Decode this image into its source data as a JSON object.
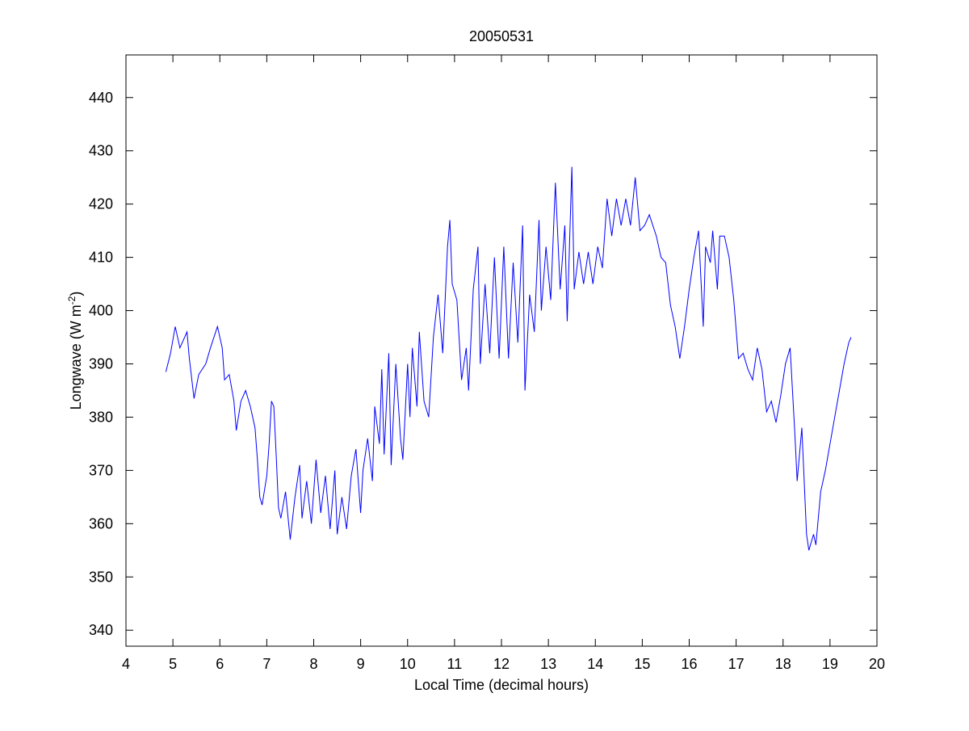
{
  "chart_data": {
    "type": "line",
    "title": "20050531",
    "xlabel": "Local Time (decimal hours)",
    "ylabel_parts": [
      "Longwave (W m",
      "-2",
      ")"
    ],
    "xlim": [
      4,
      20
    ],
    "ylim": [
      337,
      448
    ],
    "xticks": [
      4,
      5,
      6,
      7,
      8,
      9,
      10,
      11,
      12,
      13,
      14,
      15,
      16,
      17,
      18,
      19,
      20
    ],
    "yticks": [
      340,
      350,
      360,
      370,
      380,
      390,
      400,
      410,
      420,
      430,
      440
    ],
    "grid": false,
    "line_color": "#0000ff",
    "series": [
      {
        "name": "Longwave",
        "x": [
          4.85,
          4.95,
          5.05,
          5.15,
          5.3,
          5.35,
          5.45,
          5.55,
          5.7,
          5.8,
          5.95,
          6.05,
          6.1,
          6.2,
          6.3,
          6.35,
          6.45,
          6.55,
          6.65,
          6.75,
          6.8,
          6.85,
          6.9,
          7.0,
          7.05,
          7.1,
          7.15,
          7.2,
          7.25,
          7.3,
          7.4,
          7.5,
          7.6,
          7.7,
          7.75,
          7.85,
          7.95,
          8.05,
          8.15,
          8.25,
          8.35,
          8.45,
          8.5,
          8.6,
          8.7,
          8.8,
          8.9,
          9.0,
          9.05,
          9.15,
          9.25,
          9.3,
          9.4,
          9.45,
          9.5,
          9.6,
          9.65,
          9.75,
          9.85,
          9.9,
          10.0,
          10.05,
          10.1,
          10.2,
          10.25,
          10.35,
          10.45,
          10.55,
          10.65,
          10.75,
          10.85,
          10.9,
          10.95,
          11.05,
          11.15,
          11.25,
          11.3,
          11.4,
          11.5,
          11.55,
          11.65,
          11.75,
          11.85,
          11.95,
          12.05,
          12.15,
          12.25,
          12.35,
          12.45,
          12.5,
          12.6,
          12.7,
          12.8,
          12.85,
          12.95,
          13.05,
          13.15,
          13.25,
          13.35,
          13.4,
          13.5,
          13.55,
          13.65,
          13.75,
          13.85,
          13.95,
          14.05,
          14.15,
          14.25,
          14.35,
          14.45,
          14.55,
          14.65,
          14.75,
          14.85,
          14.95,
          15.05,
          15.15,
          15.3,
          15.4,
          15.5,
          15.6,
          15.7,
          15.75,
          15.8,
          15.9,
          16.0,
          16.1,
          16.2,
          16.3,
          16.35,
          16.45,
          16.5,
          16.6,
          16.65,
          16.75,
          16.85,
          16.95,
          17.05,
          17.15,
          17.25,
          17.35,
          17.45,
          17.55,
          17.65,
          17.75,
          17.85,
          17.95,
          18.05,
          18.15,
          18.25,
          18.3,
          18.4,
          18.5,
          18.55,
          18.65,
          18.7,
          18.8,
          18.9,
          19.0,
          19.1,
          19.2,
          19.3,
          19.4,
          19.45
        ],
        "y": [
          388.5,
          392,
          397,
          393,
          396,
          391,
          383.5,
          388,
          390,
          393,
          397,
          393,
          387,
          388,
          383,
          377.5,
          383,
          385,
          382,
          378,
          372,
          365,
          363.5,
          369,
          375,
          383,
          382,
          373,
          363,
          361,
          366,
          357,
          365,
          371,
          361,
          368,
          360,
          372,
          362,
          369,
          359,
          370,
          358,
          365,
          359,
          369,
          374,
          362,
          370,
          376,
          368,
          382,
          375,
          389,
          373,
          392,
          371,
          390,
          376,
          372,
          390,
          380,
          393,
          382,
          396,
          383,
          380,
          395,
          403,
          392,
          412,
          417,
          405,
          402,
          387,
          393,
          385,
          404,
          412,
          390,
          405,
          392,
          410,
          391,
          412,
          391,
          409,
          394,
          416,
          385,
          403,
          396,
          417,
          400,
          412,
          402,
          424,
          404,
          416,
          398,
          427,
          404,
          411,
          405,
          411,
          405,
          412,
          408,
          421,
          414,
          421,
          416,
          421,
          416,
          425,
          415,
          416,
          418,
          414,
          410,
          409,
          401,
          397,
          394,
          391,
          397,
          404,
          410,
          415,
          397,
          412,
          409,
          415,
          404,
          414,
          414,
          410,
          402,
          391,
          392,
          389,
          387,
          393,
          389,
          381,
          383,
          379,
          384,
          390,
          393,
          377,
          368,
          378,
          358,
          355,
          358,
          356,
          366,
          370,
          375,
          380,
          385,
          390,
          394,
          395
        ]
      }
    ]
  }
}
